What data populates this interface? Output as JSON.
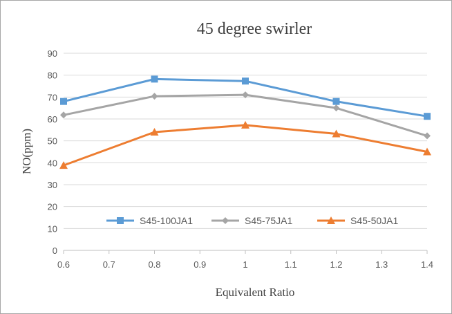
{
  "chart_data": {
    "type": "line",
    "title": "45 degree swirler",
    "xlabel": "Equivalent Ratio",
    "ylabel": "NO(ppm)",
    "x_ticks": [
      "0.6",
      "0.7",
      "0.8",
      "0.9",
      "1",
      "1.1",
      "1.2",
      "1.3",
      "1.4"
    ],
    "y_ticks": [
      "0",
      "10",
      "20",
      "30",
      "40",
      "50",
      "60",
      "70",
      "80",
      "90"
    ],
    "xlim": [
      0.6,
      1.4
    ],
    "ylim": [
      0,
      90
    ],
    "grid": "horizontal",
    "legend_position": "inside-bottom",
    "x": [
      0.6,
      0.8,
      1.0,
      1.2,
      1.4
    ],
    "series": [
      {
        "name": "S45-100JA1",
        "values": [
          68,
          78.2,
          77.3,
          68,
          61.2
        ],
        "color": "#5b9bd5",
        "marker": "square"
      },
      {
        "name": "S45-75JA1",
        "values": [
          61.8,
          70.4,
          71,
          65,
          52.3
        ],
        "color": "#a5a5a5",
        "marker": "diamond"
      },
      {
        "name": "S45-50JA1",
        "values": [
          38.8,
          54,
          57.2,
          53.2,
          45
        ],
        "color": "#ed7d31",
        "marker": "triangle"
      }
    ]
  }
}
